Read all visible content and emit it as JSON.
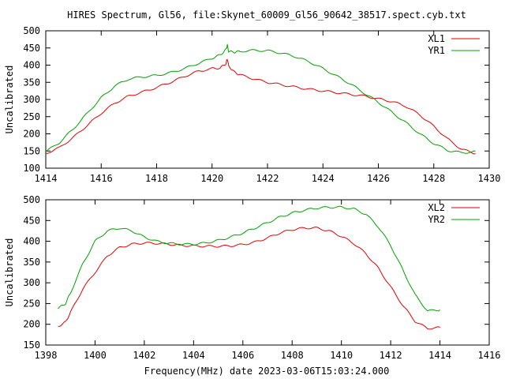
{
  "title": "HIRES Spectrum, Gl56, file:Skynet_60009_Gl56_90642_38517.spect.cyb.txt",
  "xlabel": "Frequency(MHz) date 2023-03-06T15:03:24.000",
  "colors": {
    "red": "#e00000",
    "green": "#00a000"
  },
  "chart_data": [
    {
      "type": "line",
      "ylabel": "Uncalibrated",
      "xlim": [
        1414,
        1430
      ],
      "ylim": [
        100,
        500
      ],
      "xticks": [
        1414,
        1416,
        1418,
        1420,
        1422,
        1424,
        1426,
        1428,
        1430
      ],
      "yticks": [
        100,
        150,
        200,
        250,
        300,
        350,
        400,
        450,
        500
      ],
      "legend_position": "top-right",
      "series": [
        {
          "name": "XL1",
          "color": "#e00000",
          "x": [
            1414.0,
            1414.5,
            1415.0,
            1415.5,
            1416.0,
            1416.5,
            1417.0,
            1417.5,
            1418.0,
            1418.5,
            1419.0,
            1419.5,
            1420.0,
            1420.3,
            1420.5,
            1420.55,
            1420.6,
            1420.8,
            1421.0,
            1421.5,
            1422.0,
            1422.5,
            1423.0,
            1423.5,
            1424.0,
            1424.5,
            1425.0,
            1425.5,
            1426.0,
            1426.5,
            1427.0,
            1427.5,
            1428.0,
            1428.5,
            1429.0,
            1429.5
          ],
          "y": [
            143,
            160,
            190,
            225,
            260,
            290,
            310,
            322,
            335,
            350,
            367,
            382,
            390,
            392,
            405,
            418,
            398,
            380,
            372,
            360,
            350,
            343,
            336,
            330,
            325,
            320,
            315,
            310,
            302,
            294,
            280,
            255,
            222,
            185,
            155,
            143
          ]
        },
        {
          "name": "YR1",
          "color": "#00a000",
          "x": [
            1414.0,
            1414.5,
            1415.0,
            1415.5,
            1416.0,
            1416.5,
            1417.0,
            1417.5,
            1418.0,
            1418.5,
            1419.0,
            1419.5,
            1420.0,
            1420.3,
            1420.5,
            1420.55,
            1420.6,
            1420.8,
            1421.0,
            1421.5,
            1422.0,
            1422.5,
            1423.0,
            1423.5,
            1424.0,
            1424.5,
            1425.0,
            1425.5,
            1426.0,
            1426.5,
            1427.0,
            1427.5,
            1428.0,
            1428.5,
            1429.0,
            1429.5
          ],
          "y": [
            148,
            175,
            215,
            260,
            305,
            340,
            360,
            366,
            370,
            378,
            390,
            405,
            420,
            430,
            445,
            458,
            440,
            438,
            440,
            443,
            442,
            435,
            425,
            410,
            390,
            368,
            345,
            318,
            292,
            262,
            232,
            200,
            172,
            152,
            145,
            148
          ]
        }
      ]
    },
    {
      "type": "line",
      "ylabel": "Uncalibrated",
      "xlim": [
        1398,
        1416
      ],
      "ylim": [
        150,
        500
      ],
      "xticks": [
        1398,
        1400,
        1402,
        1404,
        1406,
        1408,
        1410,
        1412,
        1414,
        1416
      ],
      "yticks": [
        150,
        200,
        250,
        300,
        350,
        400,
        450,
        500
      ],
      "legend_position": "top-right",
      "series": [
        {
          "name": "XL2",
          "color": "#e00000",
          "x": [
            1398.5,
            1398.8,
            1399.0,
            1399.5,
            1400.0,
            1400.5,
            1401.0,
            1401.5,
            1402.0,
            1402.5,
            1403.0,
            1403.5,
            1404.0,
            1404.5,
            1405.0,
            1405.5,
            1406.0,
            1406.5,
            1407.0,
            1407.5,
            1408.0,
            1408.5,
            1409.0,
            1409.5,
            1410.0,
            1410.5,
            1411.0,
            1411.5,
            1412.0,
            1412.5,
            1413.0,
            1413.5,
            1414.0
          ],
          "y": [
            195,
            205,
            228,
            285,
            325,
            365,
            385,
            393,
            396,
            395,
            393,
            390,
            389,
            388,
            388,
            389,
            392,
            398,
            408,
            420,
            428,
            432,
            432,
            425,
            412,
            395,
            370,
            335,
            290,
            245,
            207,
            190,
            192
          ]
        },
        {
          "name": "YR2",
          "color": "#00a000",
          "x": [
            1398.5,
            1398.8,
            1399.0,
            1399.5,
            1400.0,
            1400.5,
            1401.0,
            1401.5,
            1402.0,
            1402.5,
            1403.0,
            1403.5,
            1404.0,
            1404.5,
            1405.0,
            1405.5,
            1406.0,
            1406.5,
            1407.0,
            1407.5,
            1408.0,
            1408.5,
            1409.0,
            1409.5,
            1410.0,
            1410.5,
            1411.0,
            1411.5,
            1412.0,
            1412.5,
            1413.0,
            1413.5,
            1414.0
          ],
          "y": [
            238,
            250,
            275,
            345,
            400,
            425,
            432,
            425,
            410,
            400,
            395,
            393,
            393,
            396,
            402,
            410,
            420,
            432,
            445,
            458,
            468,
            475,
            480,
            482,
            482,
            478,
            465,
            435,
            390,
            330,
            270,
            232,
            235
          ]
        }
      ]
    }
  ]
}
